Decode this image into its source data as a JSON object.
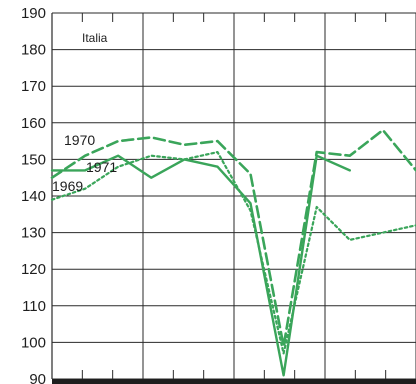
{
  "chart_data": {
    "type": "line",
    "title": "Italia",
    "xlabel": "",
    "ylabel": "",
    "ylim": [
      90,
      190
    ],
    "yticks": [
      "190",
      "180",
      "170",
      "160",
      "150",
      "140",
      "130",
      "120",
      "110",
      "100",
      "90"
    ],
    "x": [
      1,
      2,
      3,
      4,
      5,
      6,
      7,
      8,
      9,
      10,
      11,
      12
    ],
    "grid": true,
    "line_color": "#3aa55a",
    "series": [
      {
        "name": "1969",
        "style": "dotted",
        "values": [
          139,
          142,
          148,
          151,
          150,
          152,
          136,
          97,
          137,
          128,
          130,
          132
        ]
      },
      {
        "name": "1970",
        "style": "dashed",
        "values": [
          145,
          151,
          155,
          156,
          154,
          155,
          146,
          99,
          152,
          151,
          158,
          147
        ]
      },
      {
        "name": "1971",
        "style": "solid",
        "values": [
          147,
          147,
          151,
          145,
          150,
          148,
          138,
          91,
          151,
          147,
          null,
          null
        ]
      }
    ]
  }
}
